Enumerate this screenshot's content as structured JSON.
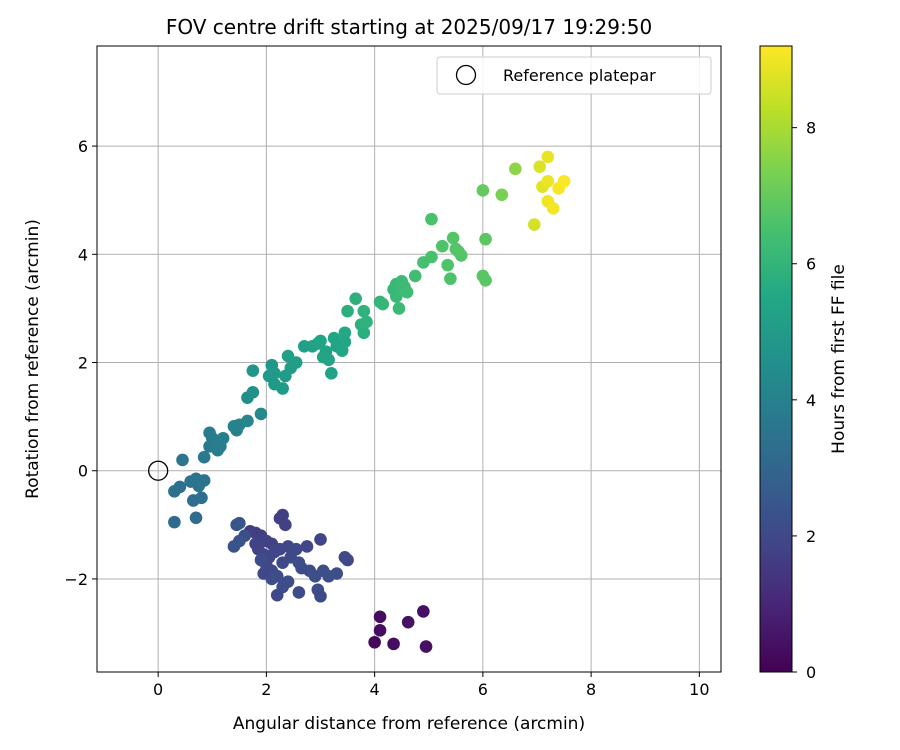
{
  "chart_data": {
    "type": "scatter",
    "title": "FOV centre drift starting at 2025/09/17 19:29:50",
    "xlabel": "Angular distance from reference (arcmin)",
    "ylabel": "Rotation from reference (arcmin)",
    "xlim": [
      -1.13,
      10.4
    ],
    "ylim": [
      -3.72,
      7.85
    ],
    "xticks": [
      0,
      2,
      4,
      6,
      8,
      10
    ],
    "yticks": [
      -2,
      0,
      2,
      4,
      6
    ],
    "xtick_labels": [
      "0",
      "2",
      "4",
      "6",
      "8",
      "10"
    ],
    "ytick_labels": [
      "−2",
      "0",
      "2",
      "4",
      "6"
    ],
    "grid": true,
    "legend": {
      "position": "top-right",
      "entries": [
        {
          "label": "Reference platepar",
          "marker": "open-circle"
        }
      ]
    },
    "reference": {
      "x": 0,
      "y": 0,
      "label": "Reference platepar"
    },
    "colorbar": {
      "label": "Hours from first FF file",
      "colormap": "viridis",
      "range": [
        0,
        9.2
      ],
      "ticks": [
        0,
        2,
        4,
        6,
        8
      ],
      "tick_labels": [
        "0",
        "2",
        "4",
        "6",
        "8"
      ]
    },
    "points": [
      [
        4.0,
        -3.17,
        0.2
      ],
      [
        4.1,
        -2.95,
        0.3
      ],
      [
        4.1,
        -2.7,
        0.3
      ],
      [
        4.35,
        -3.2,
        0.35
      ],
      [
        4.62,
        -2.8,
        0.45
      ],
      [
        4.9,
        -2.6,
        0.4
      ],
      [
        4.95,
        -3.25,
        0.4
      ],
      [
        1.7,
        -1.12,
        1.6
      ],
      [
        1.8,
        -1.15,
        1.7
      ],
      [
        1.9,
        -1.2,
        1.7
      ],
      [
        2.0,
        -1.3,
        1.8
      ],
      [
        2.1,
        -1.35,
        1.8
      ],
      [
        2.25,
        -0.88,
        1.75
      ],
      [
        2.3,
        -0.82,
        1.7
      ],
      [
        2.35,
        -1.0,
        1.75
      ],
      [
        1.85,
        -1.45,
        1.85
      ],
      [
        1.95,
        -1.55,
        1.9
      ],
      [
        2.05,
        -1.6,
        1.95
      ],
      [
        2.15,
        -1.5,
        1.9
      ],
      [
        2.25,
        -1.45,
        1.9
      ],
      [
        2.4,
        -1.4,
        1.95
      ],
      [
        2.55,
        -1.45,
        2.0
      ],
      [
        2.75,
        -1.4,
        1.9
      ],
      [
        3.0,
        -1.27,
        1.85
      ],
      [
        2.0,
        -1.75,
        2.0
      ],
      [
        2.1,
        -1.85,
        2.05
      ],
      [
        2.2,
        -1.95,
        2.1
      ],
      [
        2.3,
        -1.7,
        2.05
      ],
      [
        2.45,
        -1.6,
        2.05
      ],
      [
        2.6,
        -1.7,
        2.1
      ],
      [
        2.65,
        -1.8,
        2.15
      ],
      [
        2.8,
        -1.85,
        2.15
      ],
      [
        2.9,
        -1.95,
        2.2
      ],
      [
        3.05,
        -1.85,
        2.2
      ],
      [
        3.15,
        -1.95,
        2.2
      ],
      [
        3.3,
        -1.9,
        2.2
      ],
      [
        3.45,
        -1.6,
        2.05
      ],
      [
        3.5,
        -1.65,
        2.05
      ],
      [
        2.2,
        -2.3,
        2.0
      ],
      [
        2.3,
        -2.15,
        2.1
      ],
      [
        2.4,
        -2.05,
        2.15
      ],
      [
        2.6,
        -2.25,
        2.1
      ],
      [
        2.95,
        -2.2,
        2.1
      ],
      [
        3.0,
        -2.32,
        2.05
      ],
      [
        2.1,
        -2.0,
        2.2
      ],
      [
        1.9,
        -1.65,
        2.1
      ],
      [
        1.95,
        -1.9,
        2.0
      ],
      [
        1.6,
        -1.2,
        2.2
      ],
      [
        1.45,
        -1.0,
        2.3
      ],
      [
        1.4,
        -1.4,
        2.35
      ],
      [
        1.5,
        -1.3,
        2.4
      ],
      [
        1.5,
        -0.97,
        2.45
      ],
      [
        1.8,
        -1.35,
        1.8
      ],
      [
        0.3,
        -0.95,
        3.2
      ],
      [
        0.7,
        -0.87,
        3.25
      ],
      [
        0.65,
        -0.55,
        3.3
      ],
      [
        0.8,
        -0.5,
        3.3
      ],
      [
        0.3,
        -0.38,
        3.4
      ],
      [
        0.4,
        -0.3,
        3.4
      ],
      [
        0.6,
        -0.2,
        3.45
      ],
      [
        0.7,
        -0.15,
        3.5
      ],
      [
        0.75,
        -0.28,
        3.5
      ],
      [
        0.85,
        -0.18,
        3.55
      ],
      [
        0.45,
        0.2,
        3.6
      ],
      [
        0.85,
        0.25,
        3.7
      ],
      [
        0.95,
        0.45,
        3.75
      ],
      [
        1.0,
        0.6,
        3.8
      ],
      [
        0.95,
        0.7,
        3.8
      ],
      [
        1.1,
        0.38,
        3.85
      ],
      [
        1.15,
        0.45,
        3.9
      ],
      [
        1.2,
        0.6,
        3.95
      ],
      [
        1.45,
        0.75,
        4.0
      ],
      [
        1.5,
        0.85,
        4.1
      ],
      [
        1.4,
        0.82,
        4.1
      ],
      [
        1.65,
        0.92,
        4.2
      ],
      [
        1.9,
        1.05,
        4.3
      ],
      [
        1.65,
        1.35,
        4.5
      ],
      [
        1.75,
        1.45,
        4.6
      ],
      [
        1.75,
        1.85,
        4.7
      ],
      [
        2.1,
        1.95,
        4.8
      ],
      [
        2.05,
        1.75,
        4.9
      ],
      [
        2.15,
        1.6,
        4.9
      ],
      [
        2.15,
        1.8,
        4.95
      ],
      [
        2.3,
        1.52,
        5.0
      ],
      [
        2.35,
        1.75,
        5.0
      ],
      [
        2.45,
        1.9,
        5.05
      ],
      [
        2.55,
        2.0,
        5.1
      ],
      [
        2.4,
        2.12,
        5.15
      ],
      [
        2.7,
        2.3,
        5.2
      ],
      [
        2.85,
        2.3,
        5.25
      ],
      [
        2.95,
        2.35,
        5.3
      ],
      [
        3.1,
        2.2,
        5.3
      ],
      [
        3.15,
        2.05,
        5.35
      ],
      [
        3.05,
        2.1,
        5.35
      ],
      [
        3.25,
        2.45,
        5.4
      ],
      [
        3.3,
        2.3,
        5.4
      ],
      [
        3.4,
        2.22,
        5.45
      ],
      [
        3.45,
        2.55,
        5.5
      ],
      [
        3.45,
        2.38,
        5.45
      ],
      [
        3.2,
        1.8,
        5.3
      ],
      [
        3.0,
        2.4,
        5.4
      ],
      [
        3.5,
        2.95,
        5.8
      ],
      [
        3.65,
        3.18,
        5.85
      ],
      [
        3.8,
        2.95,
        5.9
      ],
      [
        3.8,
        2.55,
        5.8
      ],
      [
        3.75,
        2.7,
        5.85
      ],
      [
        3.85,
        2.75,
        5.9
      ],
      [
        4.1,
        3.12,
        6.0
      ],
      [
        4.15,
        3.08,
        6.05
      ],
      [
        4.35,
        3.35,
        6.1
      ],
      [
        4.4,
        3.45,
        6.15
      ],
      [
        4.5,
        3.5,
        6.2
      ],
      [
        4.4,
        3.22,
        6.15
      ],
      [
        4.45,
        3.0,
        6.2
      ],
      [
        4.55,
        3.4,
        6.25
      ],
      [
        4.6,
        3.3,
        6.3
      ],
      [
        4.75,
        3.6,
        6.35
      ],
      [
        4.9,
        3.85,
        6.45
      ],
      [
        5.05,
        3.95,
        6.5
      ],
      [
        5.05,
        4.65,
        6.55
      ],
      [
        5.25,
        4.15,
        6.6
      ],
      [
        5.35,
        3.8,
        6.65
      ],
      [
        5.45,
        4.3,
        6.7
      ],
      [
        5.5,
        4.1,
        6.7
      ],
      [
        5.4,
        3.55,
        6.6
      ],
      [
        5.6,
        3.98,
        6.7
      ],
      [
        5.55,
        4.05,
        6.75
      ],
      [
        6.0,
        3.6,
        6.8
      ],
      [
        6.05,
        3.52,
        6.8
      ],
      [
        6.05,
        4.28,
        6.85
      ],
      [
        6.0,
        5.18,
        7.0
      ],
      [
        6.35,
        5.1,
        7.3
      ],
      [
        6.6,
        5.58,
        7.6
      ],
      [
        6.95,
        4.55,
        8.6
      ],
      [
        7.05,
        5.62,
        8.7
      ],
      [
        7.1,
        5.25,
        8.8
      ],
      [
        7.2,
        5.8,
        8.9
      ],
      [
        7.2,
        5.35,
        8.95
      ],
      [
        7.2,
        4.98,
        9.0
      ],
      [
        7.3,
        4.85,
        9.05
      ],
      [
        7.4,
        5.22,
        9.1
      ],
      [
        7.5,
        5.35,
        9.15
      ]
    ]
  }
}
